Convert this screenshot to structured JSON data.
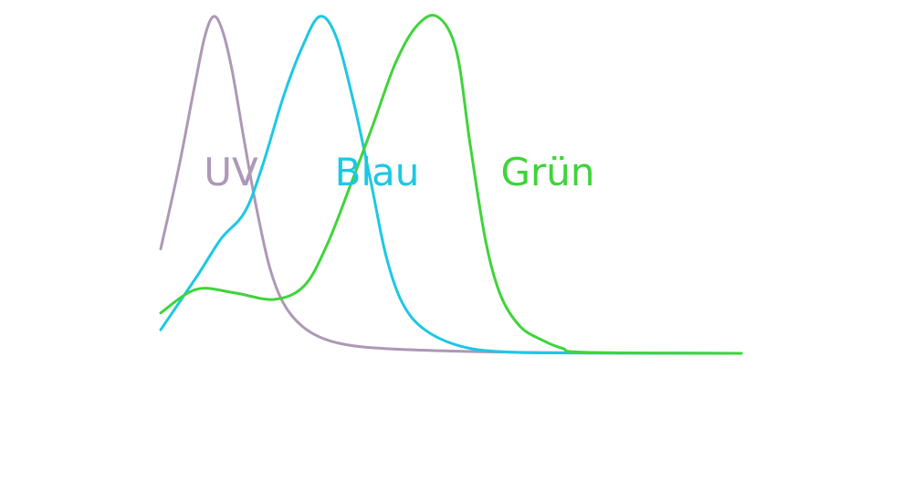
{
  "chart_data": {
    "type": "line",
    "title": "",
    "xlabel": "",
    "ylabel": "",
    "grid": false,
    "axes_visible": false,
    "xlim": [
      0,
      100
    ],
    "ylim": [
      0,
      1
    ],
    "series": [
      {
        "name": "UV",
        "color": "#ad98b7",
        "points": [
          [
            0.0,
            0.31
          ],
          [
            3.1,
            0.55
          ],
          [
            5.8,
            0.79
          ],
          [
            7.6,
            0.94
          ],
          [
            9.1,
            1.0
          ],
          [
            10.6,
            0.96
          ],
          [
            12.3,
            0.84
          ],
          [
            14.3,
            0.64
          ],
          [
            16.4,
            0.44
          ],
          [
            18.7,
            0.26
          ],
          [
            21.1,
            0.15
          ],
          [
            24.4,
            0.08
          ],
          [
            28.6,
            0.04
          ],
          [
            34.3,
            0.02
          ],
          [
            43.8,
            0.01
          ],
          [
            57.9,
            0.004
          ],
          [
            73.6,
            0.001
          ],
          [
            100.0,
            0.0
          ]
        ]
      },
      {
        "name": "Blau",
        "color": "#1cc8e4",
        "points": [
          [
            0.0,
            0.07
          ],
          [
            6.3,
            0.23
          ],
          [
            10.4,
            0.34
          ],
          [
            14.5,
            0.42
          ],
          [
            17.6,
            0.56
          ],
          [
            21.1,
            0.76
          ],
          [
            24.4,
            0.91
          ],
          [
            27.4,
            1.0
          ],
          [
            30.2,
            0.94
          ],
          [
            33.3,
            0.74
          ],
          [
            36.3,
            0.5
          ],
          [
            38.8,
            0.29
          ],
          [
            41.6,
            0.15
          ],
          [
            45.5,
            0.07
          ],
          [
            51.9,
            0.02
          ],
          [
            59.7,
            0.004
          ],
          [
            70.8,
            0.001
          ],
          [
            100.0,
            0.0
          ]
        ]
      },
      {
        "name": "Grün",
        "color": "#3fd43a",
        "points": [
          [
            0.0,
            0.12
          ],
          [
            6.1,
            0.19
          ],
          [
            12.6,
            0.18
          ],
          [
            19.5,
            0.16
          ],
          [
            24.7,
            0.2
          ],
          [
            28.6,
            0.32
          ],
          [
            32.7,
            0.5
          ],
          [
            36.6,
            0.68
          ],
          [
            40.4,
            0.86
          ],
          [
            44.0,
            0.97
          ],
          [
            47.6,
            1.0
          ],
          [
            50.9,
            0.9
          ],
          [
            53.3,
            0.62
          ],
          [
            56.0,
            0.33
          ],
          [
            58.6,
            0.17
          ],
          [
            61.9,
            0.08
          ],
          [
            65.6,
            0.04
          ],
          [
            69.2,
            0.015
          ],
          [
            73.3,
            0.003
          ],
          [
            100.0,
            0.0
          ]
        ]
      }
    ]
  }
}
